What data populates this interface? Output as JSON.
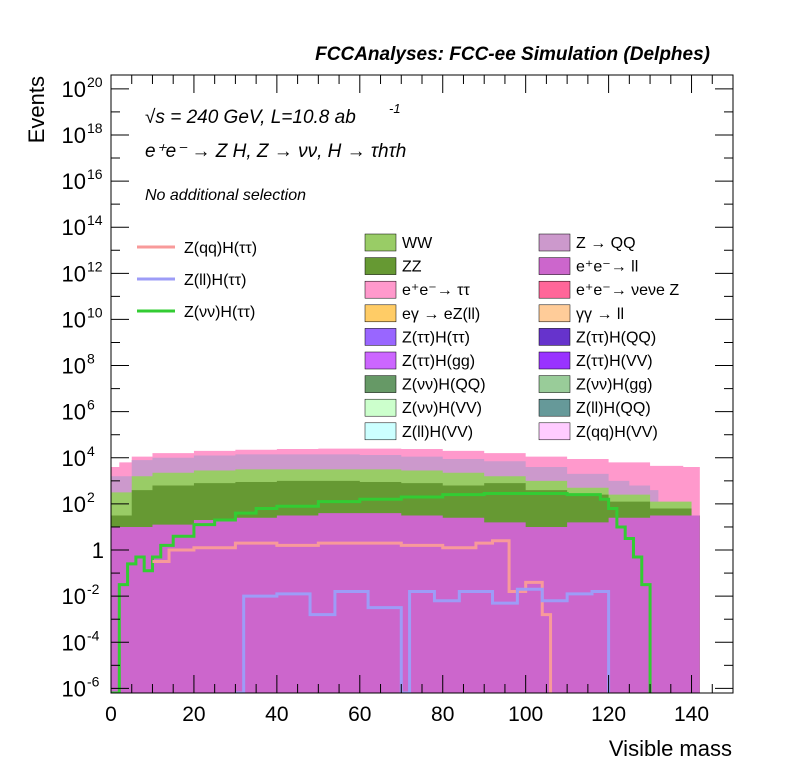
{
  "chart_data": {
    "type": "area",
    "title": "FCCAnalyses: FCC-ee Simulation (Delphes)",
    "xlabel": "Visible mass",
    "ylabel": "Events",
    "xlim": [
      0,
      150
    ],
    "ylim_log10": [
      -6.2,
      20.6
    ],
    "y_scale": "log",
    "x_ticks": [
      "0",
      "20",
      "40",
      "60",
      "80",
      "100",
      "120",
      "140"
    ],
    "y_ticks": [
      {
        "base": "10",
        "exp": "20",
        "v": 20
      },
      {
        "base": "10",
        "exp": "18",
        "v": 18
      },
      {
        "base": "10",
        "exp": "16",
        "v": 16
      },
      {
        "base": "10",
        "exp": "14",
        "v": 14
      },
      {
        "base": "10",
        "exp": "12",
        "v": 12
      },
      {
        "base": "10",
        "exp": "10",
        "v": 10
      },
      {
        "base": "10",
        "exp": "8",
        "v": 8
      },
      {
        "base": "10",
        "exp": "6",
        "v": 6
      },
      {
        "base": "10",
        "exp": "4",
        "v": 4
      },
      {
        "base": "10",
        "exp": "2",
        "v": 2
      },
      {
        "base": "1",
        "exp": "",
        "v": 0
      },
      {
        "base": "10",
        "exp": "-2",
        "v": -2
      },
      {
        "base": "10",
        "exp": "-4",
        "v": -4
      },
      {
        "base": "10",
        "exp": "-6",
        "v": -6
      }
    ],
    "annotations": {
      "energy": "√s = 240 GeV, L=10.8 ab",
      "energy_exp": "-1",
      "process": "e⁺e⁻ → Z H, Z → νν, H → τhτh",
      "selection": "No additional selection"
    },
    "signal_legend": [
      {
        "label": "Z(qq)H(ττ)",
        "color": "#f89a9a"
      },
      {
        "label": "Z(ll)H(ττ)",
        "color": "#9d9cf7"
      },
      {
        "label": "Z(νν)H(ττ)",
        "color": "#33cc33"
      }
    ],
    "background_legend": [
      {
        "label": "WW",
        "color": "#99cc66"
      },
      {
        "label": "Z → QQ",
        "color": "#cc99cc"
      },
      {
        "label": "ZZ",
        "color": "#669933"
      },
      {
        "label": "e⁺e⁻→ ll",
        "color": "#cc66cc"
      },
      {
        "label": "e⁺e⁻→ ττ",
        "color": "#ff99cc"
      },
      {
        "label": "e⁺e⁻→ νeνe Z",
        "color": "#ff6699"
      },
      {
        "label": "eγ → eZ(ll)",
        "color": "#ffcc66"
      },
      {
        "label": "γγ → ll",
        "color": "#ffcc99"
      },
      {
        "label": "Z(ττ)H(ττ)",
        "color": "#9966ff"
      },
      {
        "label": "Z(ττ)H(QQ)",
        "color": "#6633cc"
      },
      {
        "label": "Z(ττ)H(gg)",
        "color": "#cc66ff"
      },
      {
        "label": "Z(ττ)H(VV)",
        "color": "#9933ff"
      },
      {
        "label": "Z(νν)H(QQ)",
        "color": "#669966"
      },
      {
        "label": "Z(νν)H(gg)",
        "color": "#99cc99"
      },
      {
        "label": "Z(νν)H(VV)",
        "color": "#ccffcc"
      },
      {
        "label": "Z(ll)H(QQ)",
        "color": "#669999"
      },
      {
        "label": "Z(ll)H(VV)",
        "color": "#ccffff"
      },
      {
        "label": "Z(qq)H(VV)",
        "color": "#ffccff"
      }
    ],
    "stack_outlines": [
      {
        "name": "Z → QQ",
        "color": "#ff99cc",
        "points": [
          [
            0,
            3.6
          ],
          [
            2,
            3.8
          ],
          [
            5,
            4.05
          ],
          [
            10,
            4.2
          ],
          [
            20,
            4.3
          ],
          [
            30,
            4.35
          ],
          [
            40,
            4.38
          ],
          [
            50,
            4.4
          ],
          [
            60,
            4.4
          ],
          [
            70,
            4.38
          ],
          [
            80,
            4.3
          ],
          [
            90,
            4.2
          ],
          [
            100,
            4.05
          ],
          [
            110,
            3.95
          ],
          [
            120,
            3.8
          ],
          [
            130,
            3.65
          ],
          [
            138,
            3.6
          ],
          [
            140,
            3.6
          ]
        ]
      },
      {
        "name": "Z → QQ upper",
        "color": "#cc99cc",
        "points": [
          [
            0,
            3.2
          ],
          [
            5,
            3.9
          ],
          [
            10,
            4.0
          ],
          [
            20,
            4.1
          ],
          [
            30,
            4.15
          ],
          [
            40,
            4.15
          ],
          [
            50,
            4.15
          ],
          [
            60,
            4.12
          ],
          [
            70,
            4.05
          ],
          [
            80,
            3.95
          ],
          [
            90,
            3.85
          ],
          [
            100,
            3.6
          ],
          [
            110,
            3.3
          ],
          [
            120,
            3.0
          ],
          [
            125,
            2.8
          ],
          [
            130,
            2.6
          ]
        ]
      },
      {
        "name": "WW",
        "color": "#99cc66",
        "points": [
          [
            0,
            2.5
          ],
          [
            5,
            3.2
          ],
          [
            10,
            3.35
          ],
          [
            20,
            3.45
          ],
          [
            30,
            3.5
          ],
          [
            40,
            3.5
          ],
          [
            50,
            3.5
          ],
          [
            60,
            3.5
          ],
          [
            70,
            3.45
          ],
          [
            80,
            3.35
          ],
          [
            90,
            3.2
          ],
          [
            100,
            3.0
          ],
          [
            110,
            2.7
          ],
          [
            120,
            2.4
          ],
          [
            130,
            2.1
          ],
          [
            140,
            1.5
          ]
        ]
      },
      {
        "name": "ZZ",
        "color": "#669933",
        "points": [
          [
            0,
            1.5
          ],
          [
            5,
            2.6
          ],
          [
            10,
            2.8
          ],
          [
            20,
            2.9
          ],
          [
            30,
            2.95
          ],
          [
            40,
            3.0
          ],
          [
            50,
            3.0
          ],
          [
            60,
            2.95
          ],
          [
            70,
            2.9
          ],
          [
            80,
            2.8
          ],
          [
            90,
            2.9
          ],
          [
            100,
            2.6
          ],
          [
            110,
            2.4
          ],
          [
            120,
            2.1
          ],
          [
            130,
            1.8
          ],
          [
            140,
            1.5
          ]
        ]
      },
      {
        "name": "e⁺e⁻→ ll",
        "color": "#cc66cc",
        "points": [
          [
            0,
            1.0
          ],
          [
            10,
            1.1
          ],
          [
            20,
            1.3
          ],
          [
            30,
            1.4
          ],
          [
            40,
            1.5
          ],
          [
            50,
            1.6
          ],
          [
            60,
            1.6
          ],
          [
            70,
            1.5
          ],
          [
            80,
            1.4
          ],
          [
            90,
            1.2
          ],
          [
            100,
            1.0
          ],
          [
            110,
            1.2
          ],
          [
            120,
            1.4
          ],
          [
            130,
            1.5
          ],
          [
            140,
            1.5
          ]
        ]
      }
    ],
    "signal_curves": [
      {
        "name": "Z(νν)H(ττ)",
        "color": "#33cc33",
        "points": [
          [
            0,
            -6.2
          ],
          [
            2,
            -1.5
          ],
          [
            4,
            -0.6
          ],
          [
            6,
            -0.3
          ],
          [
            8,
            -0.9
          ],
          [
            10,
            -0.3
          ],
          [
            12,
            0.2
          ],
          [
            15,
            0.6
          ],
          [
            20,
            1.1
          ],
          [
            25,
            1.3
          ],
          [
            30,
            1.6
          ],
          [
            35,
            1.8
          ],
          [
            40,
            1.9
          ],
          [
            50,
            2.1
          ],
          [
            60,
            2.2
          ],
          [
            70,
            2.3
          ],
          [
            80,
            2.4
          ],
          [
            90,
            2.45
          ],
          [
            100,
            2.45
          ],
          [
            110,
            2.4
          ],
          [
            118,
            2.2
          ],
          [
            120,
            1.8
          ],
          [
            122,
            1.0
          ],
          [
            124,
            0.5
          ],
          [
            126,
            -0.3
          ],
          [
            128,
            -1.5
          ],
          [
            130,
            -6.2
          ]
        ]
      },
      {
        "name": "Z(qq)H(ττ)",
        "color": "#f89a9a",
        "points": [
          [
            10,
            -0.5
          ],
          [
            14,
            0.0
          ],
          [
            20,
            0.1
          ],
          [
            30,
            0.3
          ],
          [
            40,
            0.2
          ],
          [
            50,
            0.3
          ],
          [
            60,
            0.3
          ],
          [
            70,
            0.2
          ],
          [
            80,
            0.1
          ],
          [
            88,
            0.3
          ],
          [
            92,
            0.4
          ],
          [
            96,
            -1.8
          ],
          [
            100,
            -1.4
          ],
          [
            104,
            -2.8
          ],
          [
            106,
            -6.2
          ]
        ]
      },
      {
        "name": "Z(ll)H(ττ)",
        "color": "#9d9cf7",
        "points": [
          [
            30,
            -6.2
          ],
          [
            32,
            -2.0
          ],
          [
            40,
            -1.9
          ],
          [
            48,
            -2.8
          ],
          [
            54,
            -1.8
          ],
          [
            62,
            -2.5
          ],
          [
            70,
            -6.2
          ],
          [
            72,
            -1.8
          ],
          [
            78,
            -2.2
          ],
          [
            84,
            -1.8
          ],
          [
            92,
            -2.3
          ],
          [
            98,
            -1.7
          ],
          [
            104,
            -2.2
          ],
          [
            110,
            -1.9
          ],
          [
            116,
            -1.8
          ],
          [
            120,
            -6.2
          ]
        ]
      }
    ]
  }
}
